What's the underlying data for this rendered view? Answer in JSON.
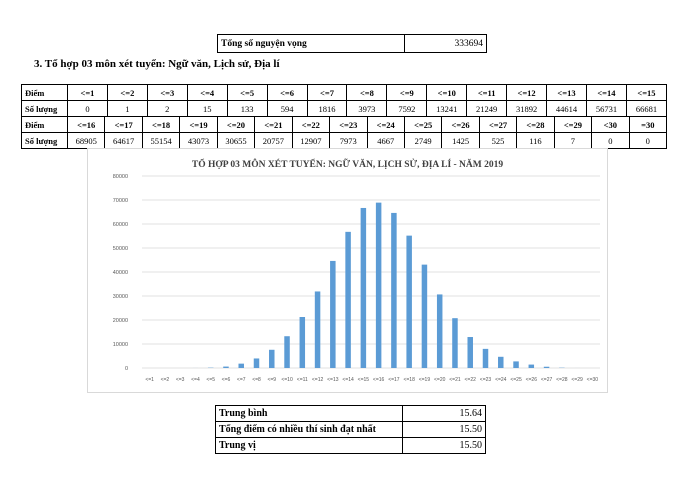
{
  "top_table": {
    "label": "Tổng số nguyện vọng",
    "value": "333694"
  },
  "section_heading": "3. Tổ hợp 03 môn xét tuyển: Ngữ văn, Lịch sử, Địa lí",
  "score_table_1": {
    "row_label_score": "Điểm",
    "row_label_count": "Số lượng",
    "scores": [
      "<=1",
      "<=2",
      "<=3",
      "<=4",
      "<=5",
      "<=6",
      "<=7",
      "<=8",
      "<=9",
      "<=10",
      "<=11",
      "<=12",
      "<=13",
      "<=14",
      "<=15"
    ],
    "counts": [
      "0",
      "1",
      "2",
      "15",
      "133",
      "594",
      "1816",
      "3973",
      "7592",
      "13241",
      "21249",
      "31892",
      "44614",
      "56731",
      "66681"
    ]
  },
  "score_table_2": {
    "row_label_score": "Điểm",
    "row_label_count": "Số lượng",
    "scores": [
      "<=16",
      "<=17",
      "<=18",
      "<=19",
      "<=20",
      "<=21",
      "<=22",
      "<=23",
      "<=24",
      "<=25",
      "<=26",
      "<=27",
      "<=28",
      "<=29",
      "<30",
      "=30"
    ],
    "counts": [
      "68905",
      "64617",
      "55154",
      "43073",
      "30655",
      "20757",
      "12907",
      "7973",
      "4667",
      "2749",
      "1425",
      "525",
      "116",
      "7",
      "0",
      "0"
    ]
  },
  "chart_data": {
    "type": "bar",
    "title": "TỔ HỢP 03 MÔN XÉT TUYỂN: NGỮ VĂN, LỊCH SỬ, ĐỊA LÍ - NĂM 2019",
    "categories": [
      "<=1",
      "<=2",
      "<=3",
      "<=4",
      "<=5",
      "<=6",
      "<=7",
      "<=8",
      "<=9",
      "<=10",
      "<=11",
      "<=12",
      "<=13",
      "<=14",
      "<=15",
      "<=16",
      "<=17",
      "<=18",
      "<=19",
      "<=20",
      "<=21",
      "<=22",
      "<=23",
      "<=24",
      "<=25",
      "<=26",
      "<=27",
      "<=28",
      "<=29",
      "<=30"
    ],
    "values": [
      0,
      1,
      2,
      15,
      133,
      594,
      1816,
      3973,
      7592,
      13241,
      21249,
      31892,
      44614,
      56731,
      66681,
      68905,
      64617,
      55154,
      43073,
      30655,
      20757,
      12907,
      7973,
      4667,
      2749,
      1425,
      525,
      116,
      7,
      0
    ],
    "ylim": [
      0,
      80000
    ],
    "yticks": [
      "0",
      "10000",
      "20000",
      "30000",
      "40000",
      "50000",
      "60000",
      "70000",
      "80000"
    ],
    "grid": true,
    "bar_color": "#5b9bd5"
  },
  "bottom_table": [
    {
      "label": "Trung bình",
      "value": "15.64"
    },
    {
      "label": "Tổng điểm có nhiều thí sinh đạt nhất",
      "value": "15.50"
    },
    {
      "label": "Trung vị",
      "value": "15.50"
    }
  ]
}
